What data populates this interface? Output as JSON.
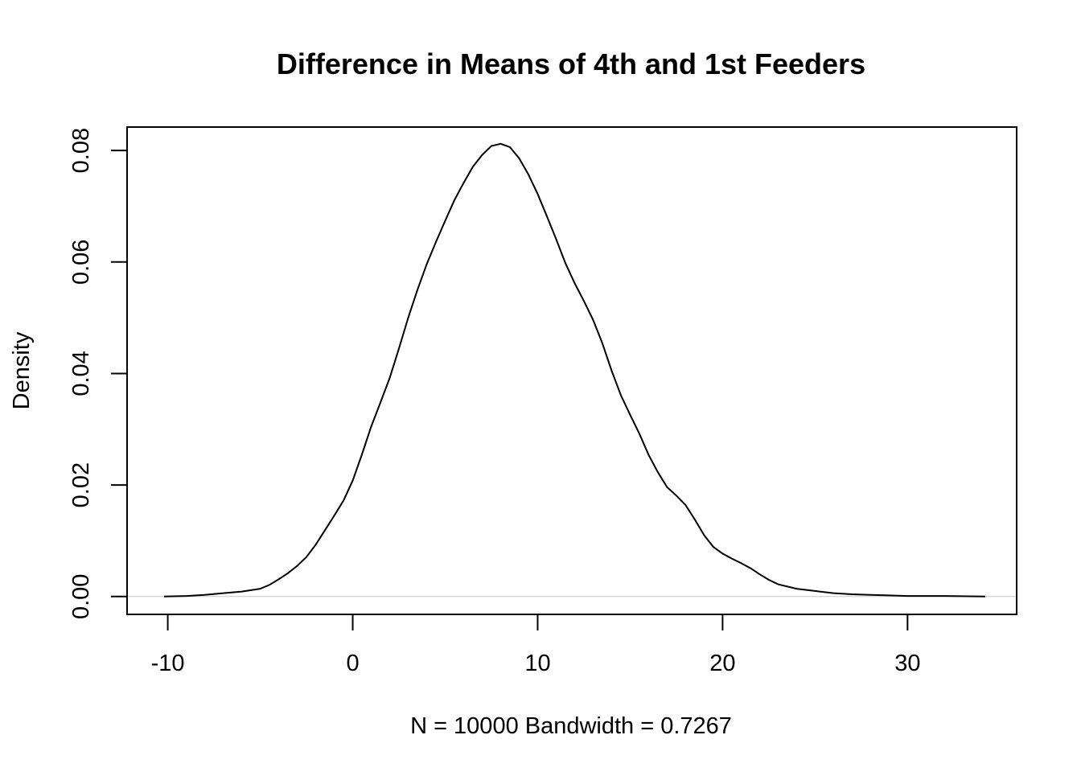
{
  "chart_data": {
    "type": "line",
    "title": "Difference in Means of 4th and 1st Feeders",
    "xlabel": "N = 10000   Bandwidth = 0.7267",
    "ylabel": "Density",
    "xlim": [
      -12.2,
      35.9
    ],
    "ylim": [
      -0.0032,
      0.0842
    ],
    "x_ticks": [
      -10,
      0,
      10,
      20,
      30
    ],
    "x_tick_labels": [
      "-10",
      "0",
      "10",
      "20",
      "30"
    ],
    "y_ticks": [
      0.0,
      0.02,
      0.04,
      0.06,
      0.08
    ],
    "y_tick_labels": [
      "0.00",
      "0.02",
      "0.04",
      "0.06",
      "0.08"
    ],
    "zero_line": true,
    "grid": false,
    "series": [
      {
        "x": [
          -10.2,
          -9,
          -8,
          -7,
          -6,
          -5,
          -4.5,
          -4,
          -3.5,
          -3,
          -2.5,
          -2,
          -1.5,
          -1,
          -0.5,
          0,
          0.5,
          1,
          1.5,
          2,
          2.5,
          3,
          3.5,
          4,
          4.5,
          5,
          5.5,
          6,
          6.5,
          7,
          7.5,
          8,
          8.5,
          9,
          9.5,
          10,
          10.5,
          11,
          11.5,
          12,
          12.5,
          13,
          13.5,
          14,
          14.5,
          15,
          15.5,
          16,
          16.5,
          17,
          17.5,
          18,
          18.5,
          19,
          19.5,
          20,
          20.5,
          21,
          21.5,
          22,
          22.5,
          23,
          24,
          25,
          26,
          27,
          28,
          29,
          30,
          32,
          34.2
        ],
        "y": [
          0.0,
          0.0001,
          0.0003,
          0.0006,
          0.0009,
          0.0014,
          0.0021,
          0.0031,
          0.0042,
          0.0055,
          0.0071,
          0.0093,
          0.0119,
          0.0145,
          0.0172,
          0.0208,
          0.0255,
          0.0305,
          0.0348,
          0.0392,
          0.0445,
          0.05,
          0.055,
          0.0596,
          0.0636,
          0.0674,
          0.0711,
          0.0742,
          0.0771,
          0.0792,
          0.0808,
          0.0812,
          0.0806,
          0.0786,
          0.0757,
          0.0722,
          0.0682,
          0.0641,
          0.0598,
          0.0562,
          0.053,
          0.0496,
          0.0454,
          0.0405,
          0.0361,
          0.0326,
          0.0292,
          0.0254,
          0.0223,
          0.0196,
          0.0181,
          0.0164,
          0.0138,
          0.011,
          0.0089,
          0.0077,
          0.0068,
          0.006,
          0.0051,
          0.004,
          0.003,
          0.0022,
          0.0014,
          0.001,
          0.0006,
          0.0004,
          0.0003,
          0.0002,
          0.0001,
          0.0001,
          0.0
        ]
      }
    ]
  }
}
